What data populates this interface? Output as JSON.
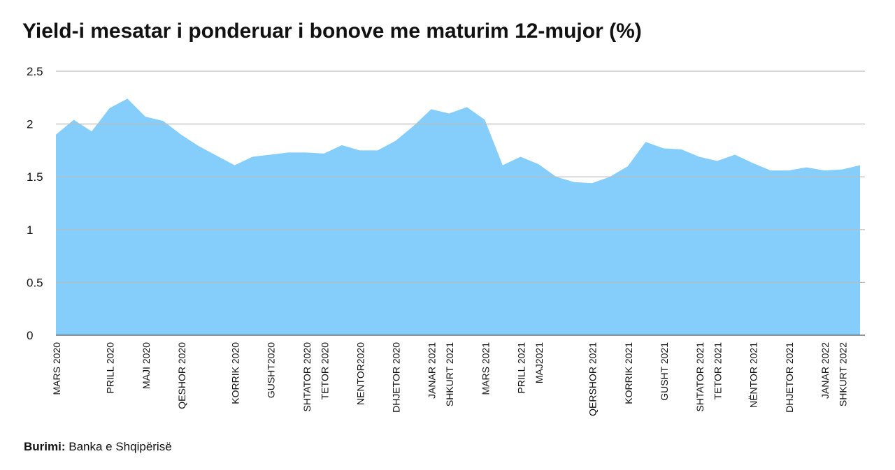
{
  "chart_data": {
    "type": "area",
    "title": "Yield-i mesatar i ponderuar i bonove me maturim 12-mujor (%)",
    "categories": [
      "MARS 2020",
      null,
      null,
      "PRILL 2020",
      null,
      "MAJI 2020",
      null,
      "QESHOR 2020",
      null,
      null,
      "KORRIK 2020",
      null,
      "GUSHT2020",
      null,
      "SHTATOR 2020",
      "TETOR 2020",
      null,
      "NENTOR2020",
      null,
      "DHJETOR 2020",
      null,
      "JANAR 2021",
      "SHKURT 2021",
      null,
      "MARS 2021",
      null,
      "PRILL 2021",
      "MAJ2021",
      null,
      null,
      "QERSHOR 2021",
      null,
      "KORRIK 2021",
      null,
      "GUSHT 2021",
      null,
      "SHTATOR 2021",
      "TETOR 2021",
      null,
      "NËNTOR 2021",
      null,
      "DHJETOR 2021",
      null,
      "JANAR 2022",
      "SHKURT 2022",
      null
    ],
    "values": [
      1.9,
      2.04,
      1.93,
      2.15,
      2.24,
      2.07,
      2.03,
      1.9,
      1.79,
      1.7,
      1.61,
      1.69,
      1.71,
      1.73,
      1.73,
      1.72,
      1.8,
      1.75,
      1.75,
      1.84,
      1.98,
      2.14,
      2.1,
      2.16,
      2.04,
      1.61,
      1.69,
      1.62,
      1.5,
      1.45,
      1.44,
      1.5,
      1.6,
      1.83,
      1.77,
      1.76,
      1.69,
      1.65,
      1.71,
      1.63,
      1.56,
      1.56,
      1.59,
      1.56,
      1.57,
      1.61
    ],
    "color": "#85cdfb",
    "ylim": [
      0,
      2.5
    ],
    "yticks": [
      0,
      0.5,
      1,
      1.5,
      2,
      2.5
    ],
    "grid": true,
    "source_label": "Burimi:",
    "source": "Banka e Shqipërisë"
  }
}
